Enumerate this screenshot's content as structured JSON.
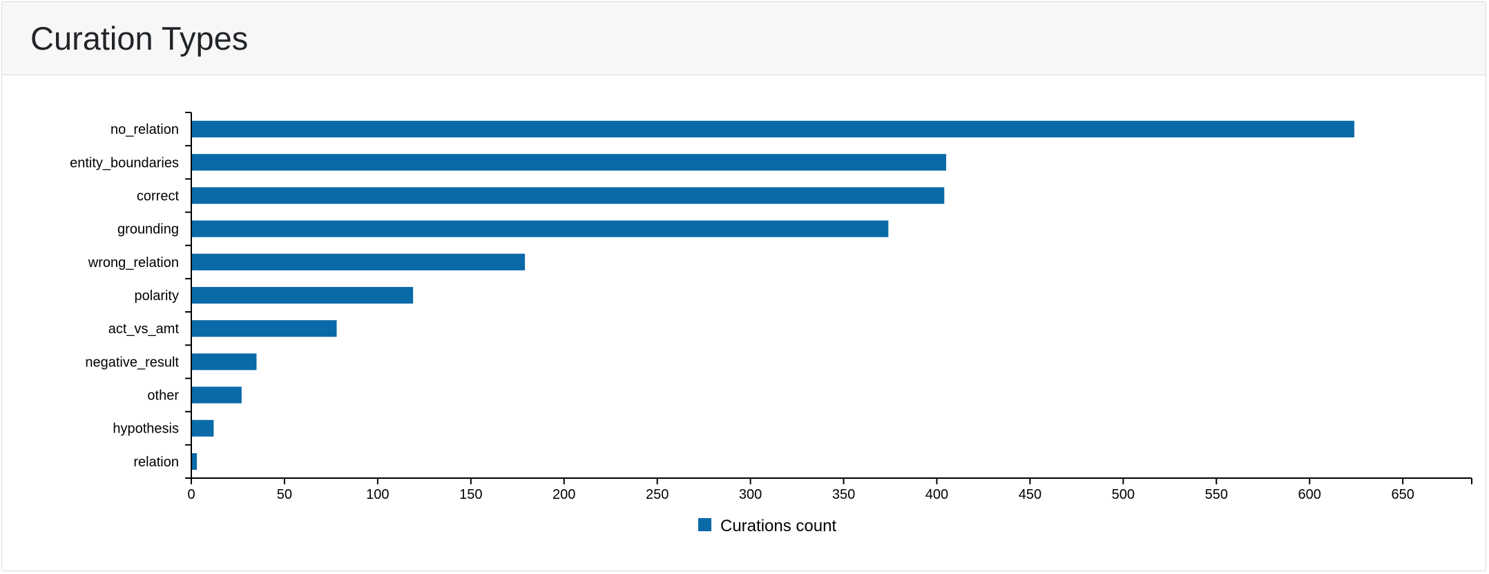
{
  "header": {
    "title": "Curation Types"
  },
  "chart_data": {
    "type": "bar",
    "orientation": "horizontal",
    "categories": [
      "no_relation",
      "entity_boundaries",
      "correct",
      "grounding",
      "wrong_relation",
      "polarity",
      "act_vs_amt",
      "negative_result",
      "other",
      "hypothesis",
      "relation"
    ],
    "series": [
      {
        "name": "Curations count",
        "values": [
          624,
          405,
          404,
          374,
          179,
          119,
          78,
          35,
          27,
          12,
          3
        ],
        "color": "#0a6aa8"
      }
    ],
    "x_ticks": [
      "0",
      "50",
      "100",
      "150",
      "200",
      "250",
      "300",
      "350",
      "400",
      "450",
      "500",
      "550",
      "600",
      "650"
    ],
    "xlim": [
      0,
      687
    ],
    "grid": false,
    "legend": "bottom-center"
  }
}
